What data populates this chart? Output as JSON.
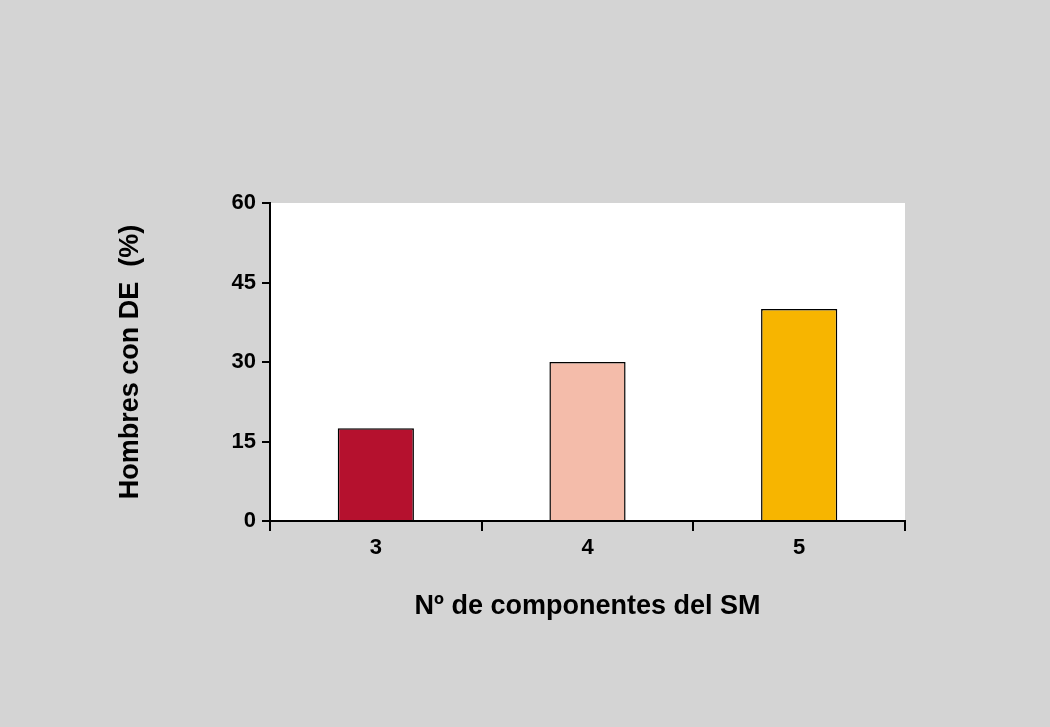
{
  "chart_data": {
    "type": "bar",
    "xlabel": "Nº de componentes del SM",
    "ylabel": "Hombres con DE  (%)",
    "categories": [
      "3",
      "4",
      "5"
    ],
    "values": [
      17.5,
      30,
      40
    ],
    "colors": [
      "#b5112e",
      "#f4bcaa",
      "#f7b500"
    ],
    "ylim": [
      0,
      60
    ],
    "yticks": [
      0,
      15,
      30,
      45,
      60
    ],
    "grid": false,
    "legend": false
  }
}
